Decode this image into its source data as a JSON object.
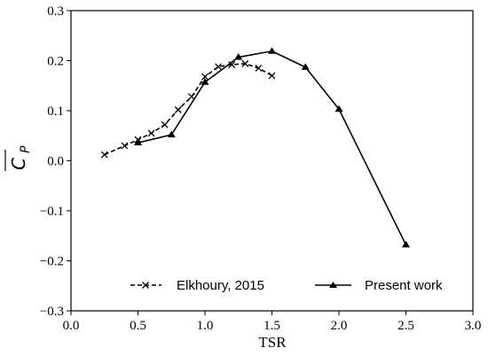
{
  "chart_data": {
    "type": "line",
    "title": "",
    "xlabel": "TSR",
    "ylabel": "C",
    "ylabel_sub": "P",
    "xlim": [
      0.0,
      3.0
    ],
    "ylim": [
      -0.3,
      0.3
    ],
    "xticks": [
      0.0,
      0.5,
      1.0,
      1.5,
      2.0,
      2.5,
      3.0
    ],
    "yticks": [
      -0.3,
      -0.2,
      -0.1,
      0.0,
      0.1,
      0.2,
      0.3
    ],
    "xtick_labels": [
      "0.0",
      "0.5",
      "1.0",
      "1.5",
      "2.0",
      "2.5",
      "3.0"
    ],
    "ytick_labels": [
      "−0.3",
      "−0.2",
      "−0.1",
      "0.0",
      "0.1",
      "0.2",
      "0.3"
    ],
    "grid": false,
    "legend_position": "bottom",
    "series": [
      {
        "name": "Elkhoury, 2015",
        "style": "dashed",
        "marker": "x",
        "color": "#000000",
        "x": [
          0.25,
          0.4,
          0.5,
          0.6,
          0.7,
          0.8,
          0.9,
          1.0,
          1.1,
          1.2,
          1.3,
          1.4,
          1.5
        ],
        "y": [
          0.012,
          0.03,
          0.042,
          0.055,
          0.072,
          0.102,
          0.128,
          0.168,
          0.188,
          0.192,
          0.194,
          0.185,
          0.17
        ]
      },
      {
        "name": "Present work",
        "style": "solid",
        "marker": "triangle",
        "color": "#000000",
        "x": [
          0.5,
          0.75,
          1.0,
          1.25,
          1.5,
          1.75,
          2.0,
          2.5
        ],
        "y": [
          0.036,
          0.052,
          0.157,
          0.207,
          0.219,
          0.187,
          0.103,
          -0.168
        ]
      }
    ]
  }
}
